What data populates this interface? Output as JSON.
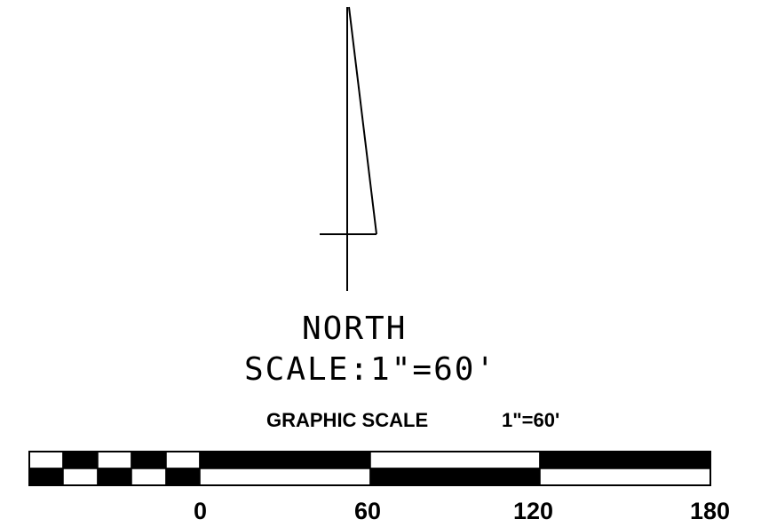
{
  "north_arrow": {
    "label": "NORTH",
    "scale_text": "SCALE:1\"=60'"
  },
  "graphic_scale": {
    "title": "GRAPHIC SCALE",
    "ratio": "1\"=60'",
    "tick_labels": [
      "0",
      "60",
      "120",
      "180"
    ],
    "colors": {
      "ink": "#000000",
      "paper": "#ffffff"
    }
  }
}
